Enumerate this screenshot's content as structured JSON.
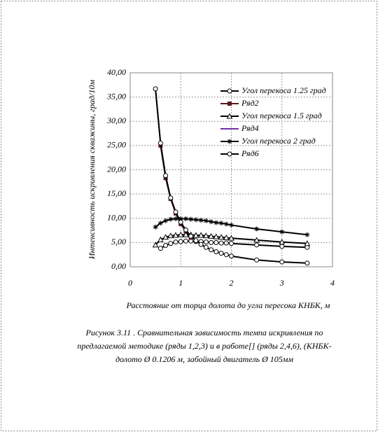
{
  "chart_data": {
    "type": "line",
    "y_label": "Интенсивность искривления скважины, град/10м",
    "x_label": "Расстояние от торца долота  до угла пересока КНБК, м",
    "caption": [
      "Рисунок 3.11    . Сравнительная зависимость темпа искривления по",
      "предлагаемой методике (ряды 1,2,3) и в работе[] (ряды 2,4,6), (КНБК-",
      "долото Ø 0.1206 м, забойный двигатель Ø 105мм"
    ],
    "xlim": [
      0,
      4
    ],
    "xticks": [
      0,
      1,
      2,
      3,
      4
    ],
    "ylim": [
      0,
      40
    ],
    "yticks": [
      {
        "value": 0,
        "label": "0,00"
      },
      {
        "value": 5,
        "label": "5,00"
      },
      {
        "value": 10,
        "label": "10,00"
      },
      {
        "value": 15,
        "label": "15,00"
      },
      {
        "value": 20,
        "label": "20,00"
      },
      {
        "value": 25,
        "label": "25,00"
      },
      {
        "value": 30,
        "label": "30,00"
      },
      {
        "value": 35,
        "label": "35,00"
      },
      {
        "value": 40,
        "label": "40,00"
      }
    ],
    "grid": true,
    "legend": "upper right",
    "series": [
      {
        "name": "Угол перекоса 1.25 град",
        "color": "#000000",
        "marker": "circle",
        "x": [
          0.6,
          0.7,
          0.8,
          0.9,
          1.0,
          1.1,
          1.2,
          1.3,
          1.4,
          1.5,
          1.6,
          1.7,
          1.8,
          1.9,
          2.0,
          2.5,
          3.0,
          3.5
        ],
        "values": [
          3.8,
          4.4,
          4.8,
          5.1,
          5.2,
          5.3,
          5.3,
          5.2,
          5.2,
          5.1,
          5.0,
          5.0,
          4.9,
          4.9,
          4.8,
          4.5,
          4.2,
          4.0
        ]
      },
      {
        "name": "Ряд2",
        "color": "#5a1a1a",
        "marker": "square",
        "x": [
          0.6,
          0.7,
          0.8,
          0.9,
          1.0,
          1.1,
          1.2
        ],
        "values": [
          25.0,
          18.3,
          14.0,
          11.0,
          8.8,
          7.3,
          6.0
        ]
      },
      {
        "name": "Угол перекоса 1.5 град",
        "color": "#000000",
        "marker": "triangle",
        "x": [
          0.5,
          0.6,
          0.7,
          0.8,
          0.9,
          1.0,
          1.1,
          1.2,
          1.3,
          1.4,
          1.5,
          1.6,
          1.7,
          1.8,
          1.9,
          2.0,
          2.5,
          3.0,
          3.5
        ],
        "values": [
          4.5,
          5.6,
          6.1,
          6.4,
          6.5,
          6.6,
          6.6,
          6.6,
          6.5,
          6.5,
          6.4,
          6.3,
          6.2,
          6.1,
          6.0,
          5.9,
          5.5,
          5.1,
          4.8
        ]
      },
      {
        "name": "Ряд4",
        "color": "#7030a0",
        "marker": "none",
        "x": [
          0.5,
          0.6,
          0.7,
          0.8,
          0.9,
          1.0
        ],
        "values": [
          36.5,
          25.3,
          18.6,
          14.1,
          11.2,
          9.1
        ]
      },
      {
        "name": "Угол перекоса  2 град",
        "color": "#000000",
        "marker": "star",
        "x": [
          0.5,
          0.6,
          0.7,
          0.8,
          0.9,
          1.0,
          1.1,
          1.2,
          1.3,
          1.4,
          1.5,
          1.6,
          1.7,
          1.8,
          1.9,
          2.0,
          2.5,
          3.0,
          3.5
        ],
        "values": [
          8.2,
          9.0,
          9.5,
          9.8,
          9.9,
          9.9,
          9.9,
          9.8,
          9.7,
          9.6,
          9.5,
          9.3,
          9.1,
          9.0,
          8.8,
          8.6,
          7.8,
          7.2,
          6.6
        ]
      },
      {
        "name": "Ряд6",
        "color": "#000000",
        "marker": "circle",
        "x": [
          0.5,
          0.6,
          0.7,
          0.8,
          0.9,
          1.0,
          1.1,
          1.2,
          1.3,
          1.4,
          1.5,
          1.6,
          1.7,
          1.8,
          1.9,
          2.0,
          2.5,
          3.0,
          3.5
        ],
        "values": [
          36.7,
          25.5,
          18.8,
          14.2,
          11.3,
          9.2,
          7.6,
          6.3,
          5.4,
          4.6,
          4.0,
          3.5,
          3.1,
          2.8,
          2.5,
          2.2,
          1.4,
          1.0,
          0.75
        ]
      }
    ]
  }
}
